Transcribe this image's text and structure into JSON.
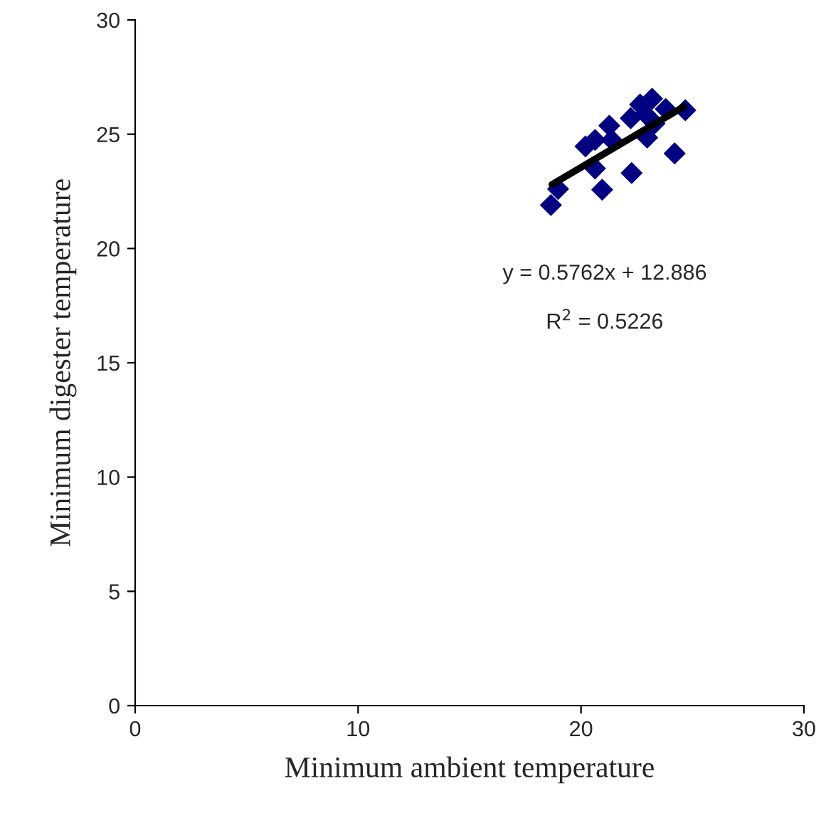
{
  "chart_data": {
    "type": "scatter",
    "xlabel": "Minimum ambient temperature",
    "ylabel": "Minimum digester temperature",
    "xlim": [
      0,
      30
    ],
    "xticks": [
      0,
      10,
      20,
      30
    ],
    "ylim": [
      0,
      30
    ],
    "yticks": [
      0,
      5,
      10,
      15,
      20,
      25,
      30
    ],
    "marker": "diamond",
    "grid": false,
    "legend": false,
    "annotations": [
      "y = 0.5762x + 12.886",
      "R$^{2}$ = 0.5226"
    ],
    "series": [
      {
        "color": "#000080",
        "x": [
          18.65,
          18.97,
          20.95,
          20.63,
          22.27,
          24.2,
          20.2,
          20.63,
          21.27,
          21.38,
          22.23,
          22.87,
          23.19,
          22.97,
          23.3,
          23.8,
          24.68,
          22.65
        ],
        "values": [
          21.9,
          22.6,
          22.57,
          23.5,
          23.3,
          24.16,
          24.47,
          24.75,
          25.37,
          24.75,
          25.7,
          25.9,
          26.55,
          24.85,
          25.47,
          26.1,
          26.05,
          26.3
        ]
      },
      {
        "type": "line",
        "color": "#000000",
        "marker": "none",
        "x": [
          18.7,
          24.6
        ],
        "values": [
          22.8,
          26.2
        ]
      }
    ]
  }
}
